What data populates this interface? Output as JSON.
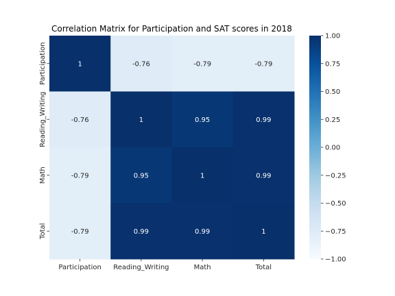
{
  "chart_data": {
    "type": "heatmap",
    "title": "Correlation Matrix for Participation and SAT scores in 2018",
    "x_labels": [
      "Participation",
      "Reading_Writing",
      "Math",
      "Total"
    ],
    "y_labels": [
      "Participation",
      "Reading_Writing",
      "Math",
      "Total"
    ],
    "values": [
      [
        1,
        -0.76,
        -0.79,
        -0.79
      ],
      [
        -0.76,
        1,
        0.95,
        0.99
      ],
      [
        -0.79,
        0.95,
        1,
        0.99
      ],
      [
        -0.79,
        0.99,
        0.99,
        1
      ]
    ],
    "value_labels": [
      [
        "1",
        "-0.76",
        "-0.79",
        "-0.79"
      ],
      [
        "-0.76",
        "1",
        "0.95",
        "0.99"
      ],
      [
        "-0.79",
        "0.95",
        "1",
        "0.99"
      ],
      [
        "-0.79",
        "0.99",
        "0.99",
        "1"
      ]
    ],
    "colormap": "Blues",
    "vmin": -1,
    "vmax": 1,
    "colorbar_ticks": [
      1,
      0.75,
      0.5,
      0.25,
      0,
      -0.25,
      -0.5,
      -0.75,
      -1
    ],
    "colorbar_tick_labels": [
      "1.00",
      "0.75",
      "0.50",
      "0.25",
      "0.00",
      "−0.25",
      "−0.50",
      "−0.75",
      "−1.00"
    ],
    "xlabel": "",
    "ylabel": ""
  }
}
